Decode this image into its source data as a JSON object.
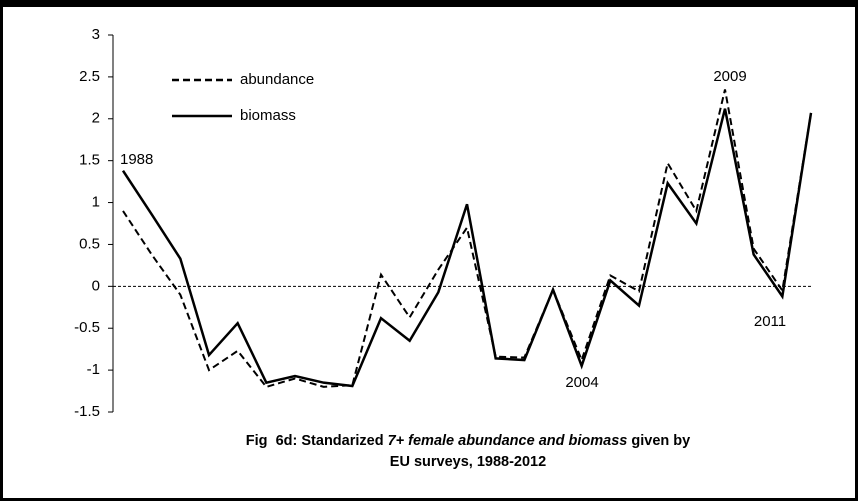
{
  "chart_data": {
    "type": "line",
    "categories": [
      null,
      null,
      null,
      null,
      null,
      null,
      null,
      null,
      null,
      null,
      null,
      null,
      null,
      null,
      null,
      null,
      null,
      null,
      null,
      null,
      null,
      null,
      null,
      null,
      null
    ],
    "series": [
      {
        "name": "abundance",
        "color": "#000000",
        "dash": true,
        "values": [
          0.9,
          0.38,
          -0.1,
          -1.0,
          -0.77,
          -1.2,
          -1.1,
          -1.2,
          -1.18,
          0.14,
          -0.37,
          0.2,
          0.7,
          -0.84,
          -0.85,
          -0.04,
          -0.88,
          0.13,
          -0.06,
          1.47,
          0.9,
          2.35,
          0.45,
          -0.05,
          2.07
        ]
      },
      {
        "name": "biomass",
        "color": "#000000",
        "dash": false,
        "values": [
          1.38,
          0.86,
          0.33,
          -0.82,
          -0.44,
          -1.15,
          -1.07,
          -1.15,
          -1.19,
          -0.38,
          -0.65,
          -0.07,
          0.98,
          -0.86,
          -0.88,
          -0.04,
          -0.95,
          0.07,
          -0.23,
          1.23,
          0.75,
          2.12,
          0.38,
          -0.12,
          2.07
        ]
      }
    ],
    "ylim": [
      -1.5,
      3
    ],
    "yticks": [
      -1.5,
      -1,
      -0.5,
      0,
      0.5,
      1,
      1.5,
      2,
      2.5,
      3
    ],
    "zero_line": true,
    "annotations": [
      "1988",
      "2004",
      "2009",
      "2011"
    ],
    "caption": [
      [
        "Fig  6d: Standarized ",
        "7+ female abundance and biomass",
        " given by"
      ],
      [
        "EU surveys, 1988-2012"
      ]
    ]
  }
}
